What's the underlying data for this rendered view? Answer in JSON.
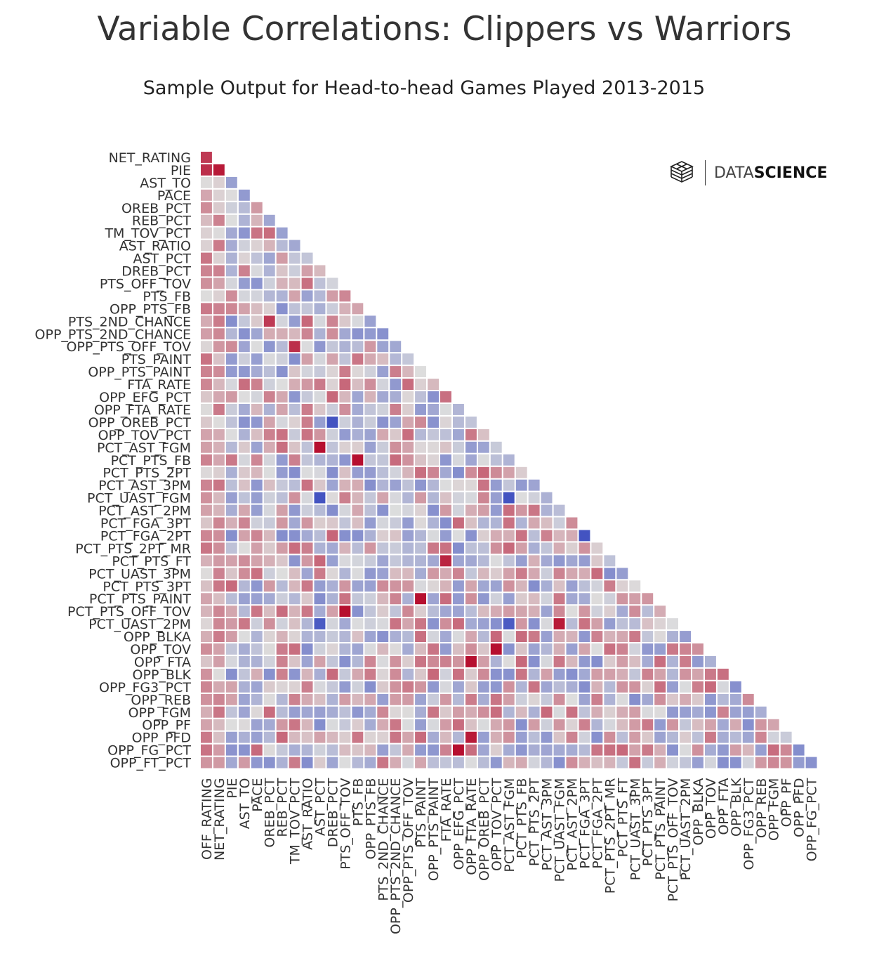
{
  "header": {
    "title": "Variable Correlations: Clippers vs Warriors",
    "subtitle": "Sample Output for Head-to-head Games Played 2013-2015"
  },
  "logo": {
    "text_light": "DATA",
    "text_bold": "SCIENCE"
  },
  "colors": {
    "positive": "#b40426",
    "negative": "#3b4cc0",
    "neutral": "#dddddd",
    "background": "#ffffff"
  },
  "chart_data": {
    "type": "heatmap",
    "title": "Variable Correlations: Clippers vs Warriors",
    "subtitle": "Sample Output for Head-to-head Games Played 2013-2015",
    "value_range": [
      -1,
      1
    ],
    "mask": "upper-triangle",
    "row_labels": [
      "NET_RATING",
      "PIE",
      "AST_TO",
      "PACE",
      "OREB_PCT",
      "REB_PCT",
      "TM_TOV_PCT",
      "AST_RATIO",
      "AST_PCT",
      "DREB_PCT",
      "PTS_OFF_TOV",
      "PTS_FB",
      "OPP_PTS_FB",
      "PTS_2ND_CHANCE",
      "OPP_PTS_2ND_CHANCE",
      "OPP_PTS_OFF_TOV",
      "PTS_PAINT",
      "OPP_PTS_PAINT",
      "FTA_RATE",
      "OPP_EFG_PCT",
      "OPP_FTA_RATE",
      "OPP_OREB_PCT",
      "OPP_TOV_PCT",
      "PCT_AST_FGM",
      "PCT_PTS_FB",
      "PCT_PTS_2PT",
      "PCT_AST_3PM",
      "PCT_UAST_FGM",
      "PCT_AST_2PM",
      "PCT_FGA_3PT",
      "PCT_FGA_2PT",
      "PCT_PTS_2PT_MR",
      "PCT_PTS_FT",
      "PCT_UAST_3PM",
      "PCT_PTS_3PT",
      "PCT_PTS_PAINT",
      "PCT_PTS_OFF_TOV",
      "PCT_UAST_2PM",
      "OPP_BLKA",
      "OPP_TOV",
      "OPP_FTA",
      "OPP_BLK",
      "OPP_FG3_PCT",
      "OPP_REB",
      "OPP_FGM",
      "OPP_PF",
      "OPP_PFD",
      "OPP_FG_PCT",
      "OPP_FT_PCT"
    ],
    "col_labels": [
      "OFF_RATING",
      "NET_RATING",
      "PIE",
      "AST_TO",
      "PACE",
      "OREB_PCT",
      "REB_PCT",
      "TM_TOV_PCT",
      "AST_RATIO",
      "AST_PCT",
      "DREB_PCT",
      "PTS_OFF_TOV",
      "PTS_FB",
      "OPP_PTS_FB",
      "PTS_2ND_CHANCE",
      "OPP_PTS_2ND_CHANCE",
      "OPP_PTS_OFF_TOV",
      "PTS_PAINT",
      "OPP_PTS_PAINT",
      "FTA_RATE",
      "OPP_EFG_PCT",
      "OPP_FTA_RATE",
      "OPP_OREB_PCT",
      "OPP_TOV_PCT",
      "PCT_AST_FGM",
      "PCT_PTS_FB",
      "PCT_PTS_2PT",
      "PCT_AST_3PM",
      "PCT_UAST_FGM",
      "PCT_AST_2PM",
      "PCT_FGA_3PT",
      "PCT_FGA_2PT",
      "PCT_PTS_2PT_MR",
      "PCT_PTS_FT",
      "PCT_UAST_3PM",
      "PCT_PTS_3PT",
      "PCT_PTS_PAINT",
      "PCT_PTS_OFF_TOV",
      "PCT_UAST_2PM",
      "OPP_BLKA",
      "OPP_TOV",
      "OPP_FTA",
      "OPP_BLK",
      "OPP_FG3_PCT",
      "OPP_REB",
      "OPP_FGM",
      "OPP_PF",
      "OPP_PFD",
      "OPP_FG_PCT"
    ],
    "notable_correlations": [
      {
        "row": 1,
        "col": 1,
        "value": 0.9
      },
      {
        "row": 0,
        "col": 0,
        "value": 0.75
      },
      {
        "row": 1,
        "col": 0,
        "value": 0.8
      },
      {
        "row": 21,
        "col": 10,
        "value": -0.95
      },
      {
        "row": 23,
        "col": 9,
        "value": 0.95
      },
      {
        "row": 24,
        "col": 12,
        "value": 0.95
      },
      {
        "row": 27,
        "col": 9,
        "value": -0.95
      },
      {
        "row": 27,
        "col": 24,
        "value": -0.95
      },
      {
        "row": 30,
        "col": 30,
        "value": -0.95
      },
      {
        "row": 35,
        "col": 17,
        "value": 0.95
      },
      {
        "row": 36,
        "col": 11,
        "value": 0.95
      },
      {
        "row": 37,
        "col": 9,
        "value": -0.9
      },
      {
        "row": 37,
        "col": 24,
        "value": -0.9
      },
      {
        "row": 37,
        "col": 28,
        "value": 0.9
      },
      {
        "row": 39,
        "col": 23,
        "value": 0.95
      },
      {
        "row": 40,
        "col": 21,
        "value": 0.95
      },
      {
        "row": 47,
        "col": 20,
        "value": 0.95
      },
      {
        "row": 46,
        "col": 21,
        "value": 0.9
      },
      {
        "row": 32,
        "col": 19,
        "value": 0.85
      },
      {
        "row": 13,
        "col": 5,
        "value": 0.75
      },
      {
        "row": 15,
        "col": 7,
        "value": 0.8
      }
    ]
  }
}
